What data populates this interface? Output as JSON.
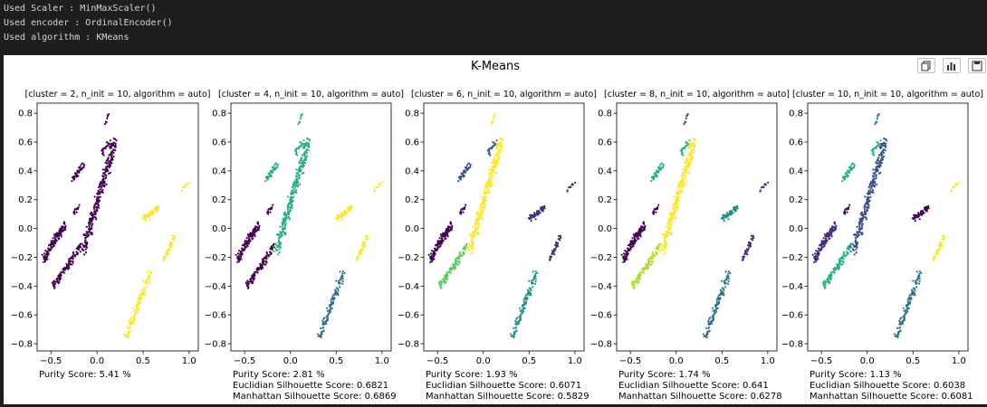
{
  "console": {
    "lines": [
      "Used Scaler : MinMaxScaler()",
      "Used encoder : OrdinalEncoder()",
      "Used algorithm : KMeans"
    ]
  },
  "figure": {
    "title": "K-Means",
    "toolbar": [
      {
        "name": "copy-icon"
      },
      {
        "name": "chart-icon"
      },
      {
        "name": "save-icon"
      }
    ]
  },
  "colors": {
    "viridis": [
      "#440154",
      "#472d7b",
      "#3b528b",
      "#2c728e",
      "#21918c",
      "#28ae80",
      "#5ec962",
      "#addc30",
      "#fde725"
    ]
  },
  "chart_data": [
    {
      "type": "scatter",
      "title": "[cluster = 2, n_init = 10, algorithm = auto]",
      "xlim": [
        -0.65,
        1.1
      ],
      "ylim": [
        -0.85,
        0.87
      ],
      "xticks": [
        -0.5,
        0.0,
        0.5,
        1.0
      ],
      "yticks": [
        -0.8,
        -0.6,
        -0.4,
        -0.2,
        0.0,
        0.2,
        0.4,
        0.6,
        0.8
      ],
      "k": 2,
      "cluster_color_index": {
        "A": 0,
        "B": 0,
        "C": 0,
        "D": 0,
        "E": 0,
        "F": 0,
        "G": 0,
        "H": 8,
        "I": 8,
        "J": 8,
        "K": 8
      },
      "scores": [
        "Purity Score: 5.41 %"
      ]
    },
    {
      "type": "scatter",
      "title": "[cluster = 4, n_init = 10, algorithm = auto]",
      "xlim": [
        -0.65,
        1.1
      ],
      "ylim": [
        -0.85,
        0.87
      ],
      "xticks": [
        -0.5,
        0.0,
        0.5,
        1.0
      ],
      "yticks": [
        -0.8,
        -0.6,
        -0.4,
        -0.2,
        0.0,
        0.2,
        0.4,
        0.6,
        0.8
      ],
      "k": 4,
      "cluster_color_index": {
        "A": 0,
        "B": 0,
        "C": 5,
        "D": 5,
        "E": 0,
        "F": 5,
        "G": 5,
        "H": 8,
        "I": 8,
        "J": 3,
        "K": 8
      },
      "scores": [
        "Purity Score: 2.81 %",
        "Euclidian Silhouette Score: 0.6821",
        "Manhattan Silhouette Score: 0.6869"
      ]
    },
    {
      "type": "scatter",
      "title": "[cluster = 6, n_init = 10, algorithm = auto]",
      "xlim": [
        -0.65,
        1.1
      ],
      "ylim": [
        -0.85,
        0.87
      ],
      "xticks": [
        -0.5,
        0.0,
        0.5,
        1.0
      ],
      "yticks": [
        -0.8,
        -0.6,
        -0.4,
        -0.2,
        0.0,
        0.2,
        0.4,
        0.6,
        0.8
      ],
      "k": 6,
      "cluster_color_index": {
        "A": 0,
        "B": 6,
        "C": 2,
        "D": 8,
        "E": 0,
        "F": 8,
        "G": 2,
        "H": 1,
        "I": 1,
        "J": 4,
        "K": 1
      },
      "scores": [
        "Purity Score: 1.93 %",
        "Euclidian Silhouette Score: 0.6071",
        "Manhattan Silhouette Score: 0.5829"
      ]
    },
    {
      "type": "scatter",
      "title": "[cluster = 8, n_init = 10, algorithm = auto]",
      "xlim": [
        -0.65,
        1.1
      ],
      "ylim": [
        -0.85,
        0.87
      ],
      "xticks": [
        -0.5,
        0.0,
        0.5,
        1.0
      ],
      "yticks": [
        -0.8,
        -0.6,
        -0.4,
        -0.2,
        0.0,
        0.2,
        0.4,
        0.6,
        0.8
      ],
      "k": 8,
      "cluster_color_index": {
        "A": 0,
        "B": 7,
        "C": 5,
        "D": 8,
        "E": 0,
        "F": 2,
        "G": 5,
        "H": 4,
        "I": 1,
        "J": 3,
        "K": 1
      },
      "scores": [
        "Purity Score: 1.74 %",
        "Euclidian Silhouette Score: 0.641",
        "Manhattan Silhouette Score: 0.6278"
      ]
    },
    {
      "type": "scatter",
      "title": "[cluster = 10, n_init = 10, algorithm = auto]",
      "xlim": [
        -0.65,
        1.1
      ],
      "ylim": [
        -0.85,
        0.87
      ],
      "xticks": [
        -0.5,
        0.0,
        0.5,
        1.0
      ],
      "yticks": [
        -0.8,
        -0.6,
        -0.4,
        -0.2,
        0.0,
        0.2,
        0.4,
        0.6,
        0.8
      ],
      "k": 10,
      "cluster_color_index": {
        "A": 1,
        "B": 5,
        "C": 5,
        "D": 2,
        "E": 0,
        "F": 3,
        "G": 5,
        "H": 0,
        "I": 8,
        "J": 3,
        "K": 8
      },
      "scores": [
        "Purity Score: 1.13 %",
        "Euclidian Silhouette Score: 0.6038",
        "Manhattan Silhouette Score: 0.6081"
      ]
    }
  ]
}
